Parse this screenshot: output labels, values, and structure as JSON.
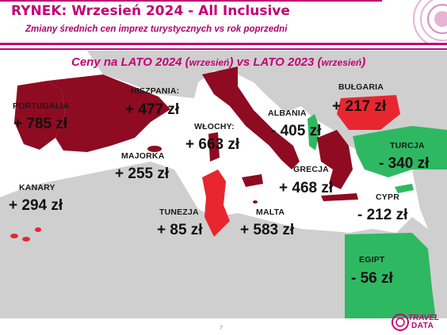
{
  "slide": {
    "title": "RYNEK: Wrzesień 2024 - All Inclusive",
    "subtitle": "Zmiany średnich cen imprez turystycznych vs rok poprzedni",
    "header": {
      "part1": "Ceny na LATO 2024 (",
      "part1_small": "wrzesień",
      "part2": ") vs  LATO 2023 (",
      "part2_small": "wrzesień",
      "part3": ")"
    },
    "page_number": "7"
  },
  "logo": {
    "travel": "TRAVEL",
    "data": "DATA"
  },
  "colors": {
    "brand": "#c40075",
    "increase_dark": "#8e0b22",
    "increase_red": "#e8262f",
    "decrease_green": "#2fb862",
    "land": "#cfcfcf",
    "sea": "#ffffff"
  },
  "destinations": [
    {
      "name": "PORTUGALIA",
      "change": "+ 785 zł"
    },
    {
      "name": "HISZPANIA:",
      "change": "+ 477 zł"
    },
    {
      "name": "MAJORKA",
      "change": "+ 255 zł"
    },
    {
      "name": "KANARY",
      "change": "+ 294 zł"
    },
    {
      "name": "WŁOCHY:",
      "change": "+ 663 zł"
    },
    {
      "name": "ALBANIA",
      "change": "- 405 zł"
    },
    {
      "name": "BUŁGARIA",
      "change": "+ 217 zł"
    },
    {
      "name": "TURCJA",
      "change": "- 340 zł"
    },
    {
      "name": "GRECJA",
      "change": "+ 468 zł"
    },
    {
      "name": "CYPR",
      "change": "- 212 zł"
    },
    {
      "name": "TUNEZJA",
      "change": "+ 85 zł"
    },
    {
      "name": "MALTA",
      "change": "+ 583 zł"
    },
    {
      "name": "EGIPT",
      "change": "- 56 zł"
    }
  ]
}
